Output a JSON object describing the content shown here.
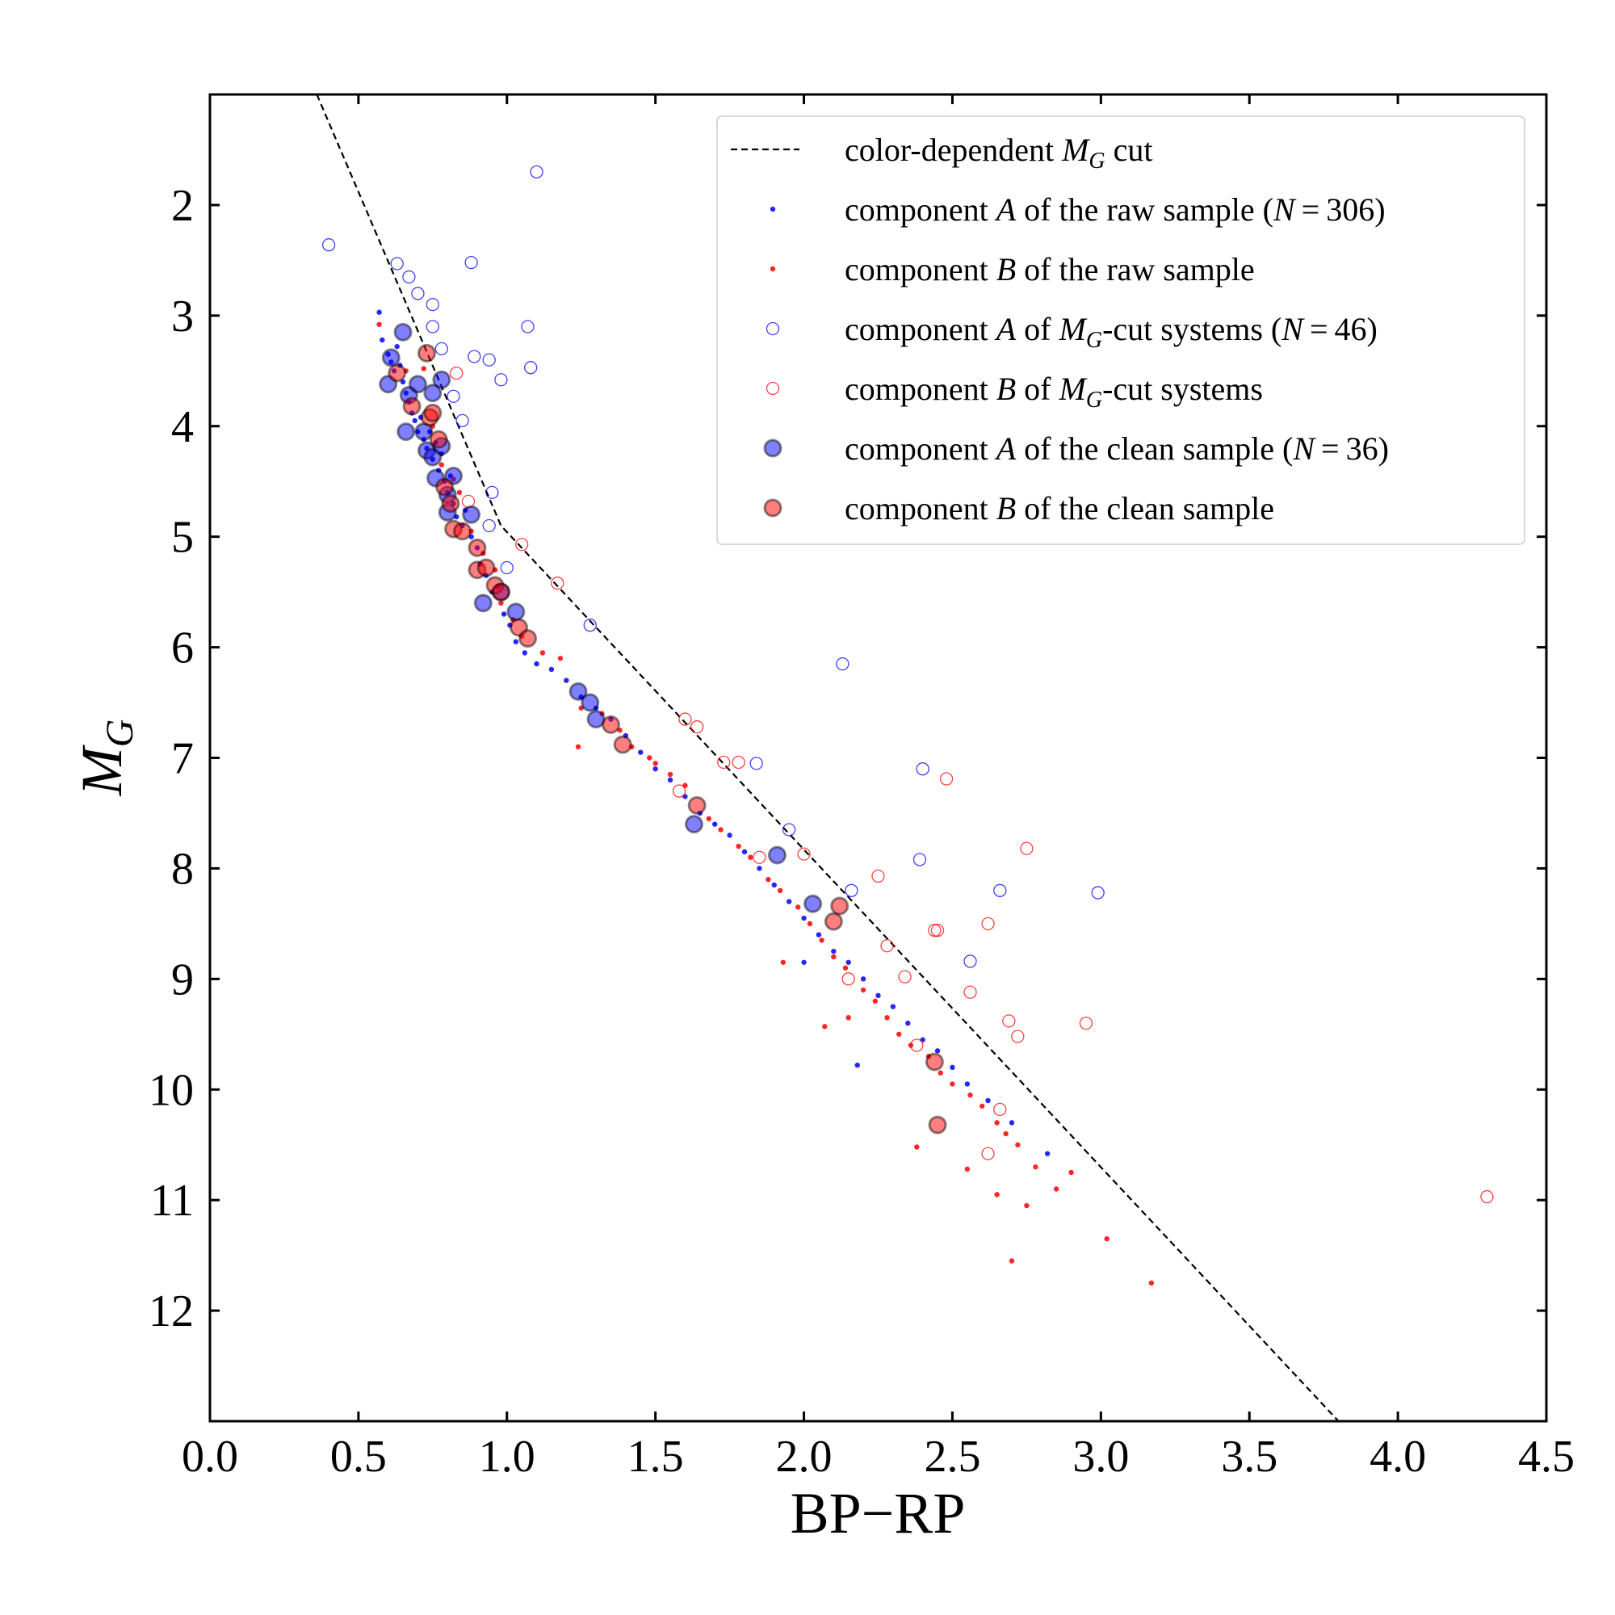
{
  "chart_data": {
    "type": "scatter",
    "xlabel": "BP−RP",
    "ylabel": "M",
    "ylabel_sub": "G",
    "xlim": [
      0.0,
      4.5
    ],
    "ylim": [
      13.0,
      1.0
    ],
    "y_inverted": true,
    "xticks": [
      0.0,
      0.5,
      1.0,
      1.5,
      2.0,
      2.5,
      3.0,
      3.5,
      4.0,
      4.5
    ],
    "xtick_labels": [
      "0.0",
      "0.5",
      "1.0",
      "1.5",
      "2.0",
      "2.5",
      "3.0",
      "3.5",
      "4.0",
      "4.5"
    ],
    "yticks": [
      2,
      3,
      4,
      5,
      6,
      7,
      8,
      9,
      10,
      11,
      12
    ],
    "ytick_labels": [
      "2",
      "3",
      "4",
      "5",
      "6",
      "7",
      "8",
      "9",
      "10",
      "11",
      "12"
    ],
    "colors": {
      "blue": "#0000ff",
      "red": "#ff0000",
      "dashed_line": "#000000"
    },
    "legend": {
      "position": "upper-right",
      "entries": [
        {
          "id": "cut-line",
          "marker": "dashed-line",
          "parts": [
            "color-dependent ",
            {
              "it": "M"
            },
            {
              "sub": "G"
            },
            " cut"
          ]
        },
        {
          "id": "raw-a",
          "marker": "dot-blue",
          "parts": [
            "component ",
            {
              "it": "A"
            },
            " of the raw sample (",
            {
              "it": "N"
            },
            " = 306)"
          ]
        },
        {
          "id": "raw-b",
          "marker": "dot-red",
          "parts": [
            "component ",
            {
              "it": "B"
            },
            " of the raw sample"
          ]
        },
        {
          "id": "cut-a",
          "marker": "ring-blue",
          "parts": [
            "component ",
            {
              "it": "A"
            },
            " of ",
            {
              "it": "M"
            },
            {
              "sub": "G"
            },
            "-cut systems (",
            {
              "it": "N"
            },
            " = 46)"
          ]
        },
        {
          "id": "cut-b",
          "marker": "ring-red",
          "parts": [
            "component ",
            {
              "it": "B"
            },
            " of ",
            {
              "it": "M"
            },
            {
              "sub": "G"
            },
            "-cut systems"
          ]
        },
        {
          "id": "clean-a",
          "marker": "big-blue",
          "parts": [
            "component ",
            {
              "it": "A"
            },
            " of the clean sample (",
            {
              "it": "N"
            },
            " = 36)"
          ]
        },
        {
          "id": "clean-b",
          "marker": "big-red",
          "parts": [
            "component ",
            {
              "it": "B"
            },
            " of the clean sample"
          ]
        }
      ]
    },
    "cut_line": [
      [
        0.36,
        1.0
      ],
      [
        0.98,
        4.9
      ],
      [
        3.8,
        13.0
      ]
    ],
    "series": [
      {
        "name": "component A of the raw sample",
        "style": "dot-blue",
        "points": [
          [
            0.57,
            2.97
          ],
          [
            0.58,
            3.22
          ],
          [
            0.6,
            3.35
          ],
          [
            0.61,
            3.42
          ],
          [
            0.62,
            3.5
          ],
          [
            0.63,
            3.28
          ],
          [
            0.64,
            3.45
          ],
          [
            0.65,
            3.6
          ],
          [
            0.66,
            3.7
          ],
          [
            0.67,
            3.78
          ],
          [
            0.68,
            3.88
          ],
          [
            0.69,
            3.95
          ],
          [
            0.7,
            4.05
          ],
          [
            0.71,
            3.92
          ],
          [
            0.72,
            4.12
          ],
          [
            0.73,
            4.2
          ],
          [
            0.74,
            4.05
          ],
          [
            0.75,
            4.3
          ],
          [
            0.76,
            4.15
          ],
          [
            0.77,
            4.4
          ],
          [
            0.78,
            4.25
          ],
          [
            0.79,
            4.5
          ],
          [
            0.8,
            4.6
          ],
          [
            0.81,
            4.45
          ],
          [
            0.82,
            4.7
          ],
          [
            0.83,
            4.82
          ],
          [
            0.85,
            4.9
          ],
          [
            0.86,
            4.76
          ],
          [
            0.88,
            5.0
          ],
          [
            0.9,
            5.1
          ],
          [
            0.91,
            5.25
          ],
          [
            0.93,
            5.35
          ],
          [
            0.95,
            5.5
          ],
          [
            0.97,
            5.45
          ],
          [
            0.99,
            5.7
          ],
          [
            1.01,
            5.8
          ],
          [
            1.03,
            5.95
          ],
          [
            1.06,
            6.05
          ],
          [
            1.1,
            6.15
          ],
          [
            1.15,
            6.2
          ],
          [
            1.2,
            6.3
          ],
          [
            1.25,
            6.45
          ],
          [
            1.3,
            6.55
          ],
          [
            1.35,
            6.65
          ],
          [
            1.4,
            6.8
          ],
          [
            1.45,
            6.95
          ],
          [
            1.5,
            7.1
          ],
          [
            1.55,
            7.2
          ],
          [
            1.6,
            7.35
          ],
          [
            1.65,
            7.5
          ],
          [
            1.7,
            7.6
          ],
          [
            1.75,
            7.7
          ],
          [
            1.8,
            7.85
          ],
          [
            1.85,
            8.0
          ],
          [
            1.9,
            8.15
          ],
          [
            1.95,
            8.3
          ],
          [
            2.0,
            8.45
          ],
          [
            2.05,
            8.6
          ],
          [
            2.1,
            8.75
          ],
          [
            2.15,
            8.85
          ],
          [
            2.2,
            9.0
          ],
          [
            2.25,
            9.15
          ],
          [
            2.3,
            9.25
          ],
          [
            2.35,
            9.4
          ],
          [
            2.4,
            9.55
          ],
          [
            2.45,
            9.65
          ],
          [
            2.5,
            9.8
          ],
          [
            2.55,
            9.95
          ],
          [
            2.62,
            10.1
          ],
          [
            2.7,
            10.3
          ],
          [
            2.82,
            10.58
          ],
          [
            2.18,
            9.78
          ],
          [
            2.0,
            8.85
          ]
        ]
      },
      {
        "name": "component B of the raw sample",
        "style": "dot-red",
        "points": [
          [
            0.57,
            3.08
          ],
          [
            0.66,
            3.5
          ],
          [
            0.72,
            3.48
          ],
          [
            0.75,
            4.0
          ],
          [
            0.78,
            4.35
          ],
          [
            0.82,
            4.48
          ],
          [
            0.84,
            4.6
          ],
          [
            0.88,
            4.95
          ],
          [
            0.92,
            5.15
          ],
          [
            0.96,
            5.3
          ],
          [
            0.98,
            5.6
          ],
          [
            1.02,
            5.75
          ],
          [
            1.05,
            5.9
          ],
          [
            1.12,
            6.05
          ],
          [
            1.18,
            6.1
          ],
          [
            1.25,
            6.55
          ],
          [
            1.32,
            6.6
          ],
          [
            1.38,
            6.75
          ],
          [
            1.42,
            6.9
          ],
          [
            1.48,
            7.0
          ],
          [
            1.5,
            7.05
          ],
          [
            1.55,
            7.15
          ],
          [
            1.6,
            7.25
          ],
          [
            1.68,
            7.55
          ],
          [
            1.72,
            7.65
          ],
          [
            1.78,
            7.8
          ],
          [
            1.82,
            7.9
          ],
          [
            1.88,
            8.1
          ],
          [
            1.92,
            8.2
          ],
          [
            1.98,
            8.35
          ],
          [
            2.02,
            8.5
          ],
          [
            2.06,
            8.65
          ],
          [
            2.1,
            8.8
          ],
          [
            2.14,
            8.9
          ],
          [
            2.2,
            9.1
          ],
          [
            2.24,
            9.2
          ],
          [
            2.28,
            9.35
          ],
          [
            2.32,
            9.5
          ],
          [
            2.36,
            9.6
          ],
          [
            2.42,
            9.7
          ],
          [
            2.46,
            9.85
          ],
          [
            2.5,
            9.95
          ],
          [
            2.56,
            10.05
          ],
          [
            2.6,
            10.15
          ],
          [
            2.65,
            10.3
          ],
          [
            2.68,
            10.4
          ],
          [
            2.72,
            10.5
          ],
          [
            2.78,
            10.7
          ],
          [
            2.85,
            10.9
          ],
          [
            2.9,
            10.75
          ],
          [
            2.75,
            11.05
          ],
          [
            2.7,
            11.55
          ],
          [
            2.65,
            10.95
          ],
          [
            3.02,
            11.35
          ],
          [
            3.17,
            11.75
          ],
          [
            2.38,
            10.52
          ],
          [
            2.55,
            10.72
          ],
          [
            2.07,
            9.43
          ],
          [
            1.93,
            8.85
          ],
          [
            1.24,
            6.9
          ],
          [
            2.15,
            9.35
          ]
        ]
      },
      {
        "name": "component A of MG-cut systems",
        "style": "ring-blue",
        "points": [
          [
            0.4,
            2.36
          ],
          [
            0.63,
            2.53
          ],
          [
            0.67,
            2.65
          ],
          [
            0.7,
            2.8
          ],
          [
            0.75,
            2.9
          ],
          [
            0.75,
            3.1
          ],
          [
            0.88,
            2.52
          ],
          [
            1.1,
            1.7
          ],
          [
            1.07,
            3.1
          ],
          [
            1.08,
            3.47
          ],
          [
            0.89,
            3.37
          ],
          [
            0.94,
            3.4
          ],
          [
            0.98,
            3.58
          ],
          [
            0.82,
            3.73
          ],
          [
            0.85,
            3.95
          ],
          [
            0.95,
            4.6
          ],
          [
            0.94,
            4.9
          ],
          [
            1.0,
            5.28
          ],
          [
            1.28,
            5.8
          ],
          [
            2.13,
            6.15
          ],
          [
            1.84,
            7.05
          ],
          [
            1.95,
            7.65
          ],
          [
            2.16,
            8.2
          ],
          [
            2.4,
            7.1
          ],
          [
            2.39,
            7.92
          ],
          [
            2.66,
            8.2
          ],
          [
            2.99,
            8.22
          ],
          [
            2.56,
            8.84
          ],
          [
            0.78,
            3.3
          ]
        ]
      },
      {
        "name": "component B of MG-cut systems",
        "style": "ring-red",
        "points": [
          [
            0.83,
            3.52
          ],
          [
            0.87,
            4.68
          ],
          [
            1.05,
            5.07
          ],
          [
            1.17,
            5.42
          ],
          [
            1.6,
            6.65
          ],
          [
            1.64,
            6.72
          ],
          [
            1.73,
            7.04
          ],
          [
            1.78,
            7.04
          ],
          [
            2.48,
            7.19
          ],
          [
            2.75,
            7.82
          ],
          [
            2.0,
            7.87
          ],
          [
            2.25,
            8.07
          ],
          [
            2.62,
            8.5
          ],
          [
            2.44,
            8.56
          ],
          [
            2.45,
            8.56
          ],
          [
            2.28,
            8.7
          ],
          [
            2.34,
            8.98
          ],
          [
            2.15,
            9.0
          ],
          [
            2.56,
            9.12
          ],
          [
            2.69,
            9.38
          ],
          [
            2.72,
            9.52
          ],
          [
            2.95,
            9.4
          ],
          [
            2.38,
            9.6
          ],
          [
            2.66,
            10.18
          ],
          [
            2.62,
            10.58
          ],
          [
            1.58,
            7.3
          ],
          [
            1.85,
            7.9
          ],
          [
            4.3,
            10.97
          ]
        ]
      },
      {
        "name": "component A of the clean sample",
        "style": "big-blue",
        "points": [
          [
            0.65,
            3.15
          ],
          [
            0.61,
            3.38
          ],
          [
            0.6,
            3.62
          ],
          [
            0.67,
            3.72
          ],
          [
            0.7,
            3.62
          ],
          [
            0.75,
            3.7
          ],
          [
            0.78,
            3.58
          ],
          [
            0.66,
            4.05
          ],
          [
            0.72,
            4.05
          ],
          [
            0.73,
            4.22
          ],
          [
            0.75,
            4.28
          ],
          [
            0.78,
            4.18
          ],
          [
            0.76,
            4.47
          ],
          [
            0.8,
            4.62
          ],
          [
            0.82,
            4.45
          ],
          [
            0.8,
            4.78
          ],
          [
            0.88,
            4.8
          ],
          [
            0.92,
            5.6
          ],
          [
            0.98,
            5.5
          ],
          [
            1.03,
            5.68
          ],
          [
            1.24,
            6.4
          ],
          [
            1.28,
            6.5
          ],
          [
            1.3,
            6.65
          ],
          [
            1.63,
            7.6
          ],
          [
            1.91,
            7.88
          ],
          [
            2.03,
            8.32
          ]
        ]
      },
      {
        "name": "component B of the clean sample",
        "style": "big-red",
        "points": [
          [
            0.73,
            3.34
          ],
          [
            0.63,
            3.52
          ],
          [
            0.68,
            3.82
          ],
          [
            0.74,
            3.92
          ],
          [
            0.75,
            3.88
          ],
          [
            0.77,
            4.12
          ],
          [
            0.79,
            4.55
          ],
          [
            0.81,
            4.7
          ],
          [
            0.82,
            4.93
          ],
          [
            0.85,
            4.95
          ],
          [
            0.9,
            5.1
          ],
          [
            0.9,
            5.3
          ],
          [
            0.93,
            5.28
          ],
          [
            0.96,
            5.44
          ],
          [
            0.98,
            5.5
          ],
          [
            1.04,
            5.82
          ],
          [
            1.07,
            5.92
          ],
          [
            1.35,
            6.7
          ],
          [
            1.39,
            6.88
          ],
          [
            1.64,
            7.43
          ],
          [
            2.1,
            8.48
          ],
          [
            2.12,
            8.34
          ],
          [
            2.44,
            9.75
          ],
          [
            2.45,
            10.32
          ]
        ]
      }
    ]
  }
}
